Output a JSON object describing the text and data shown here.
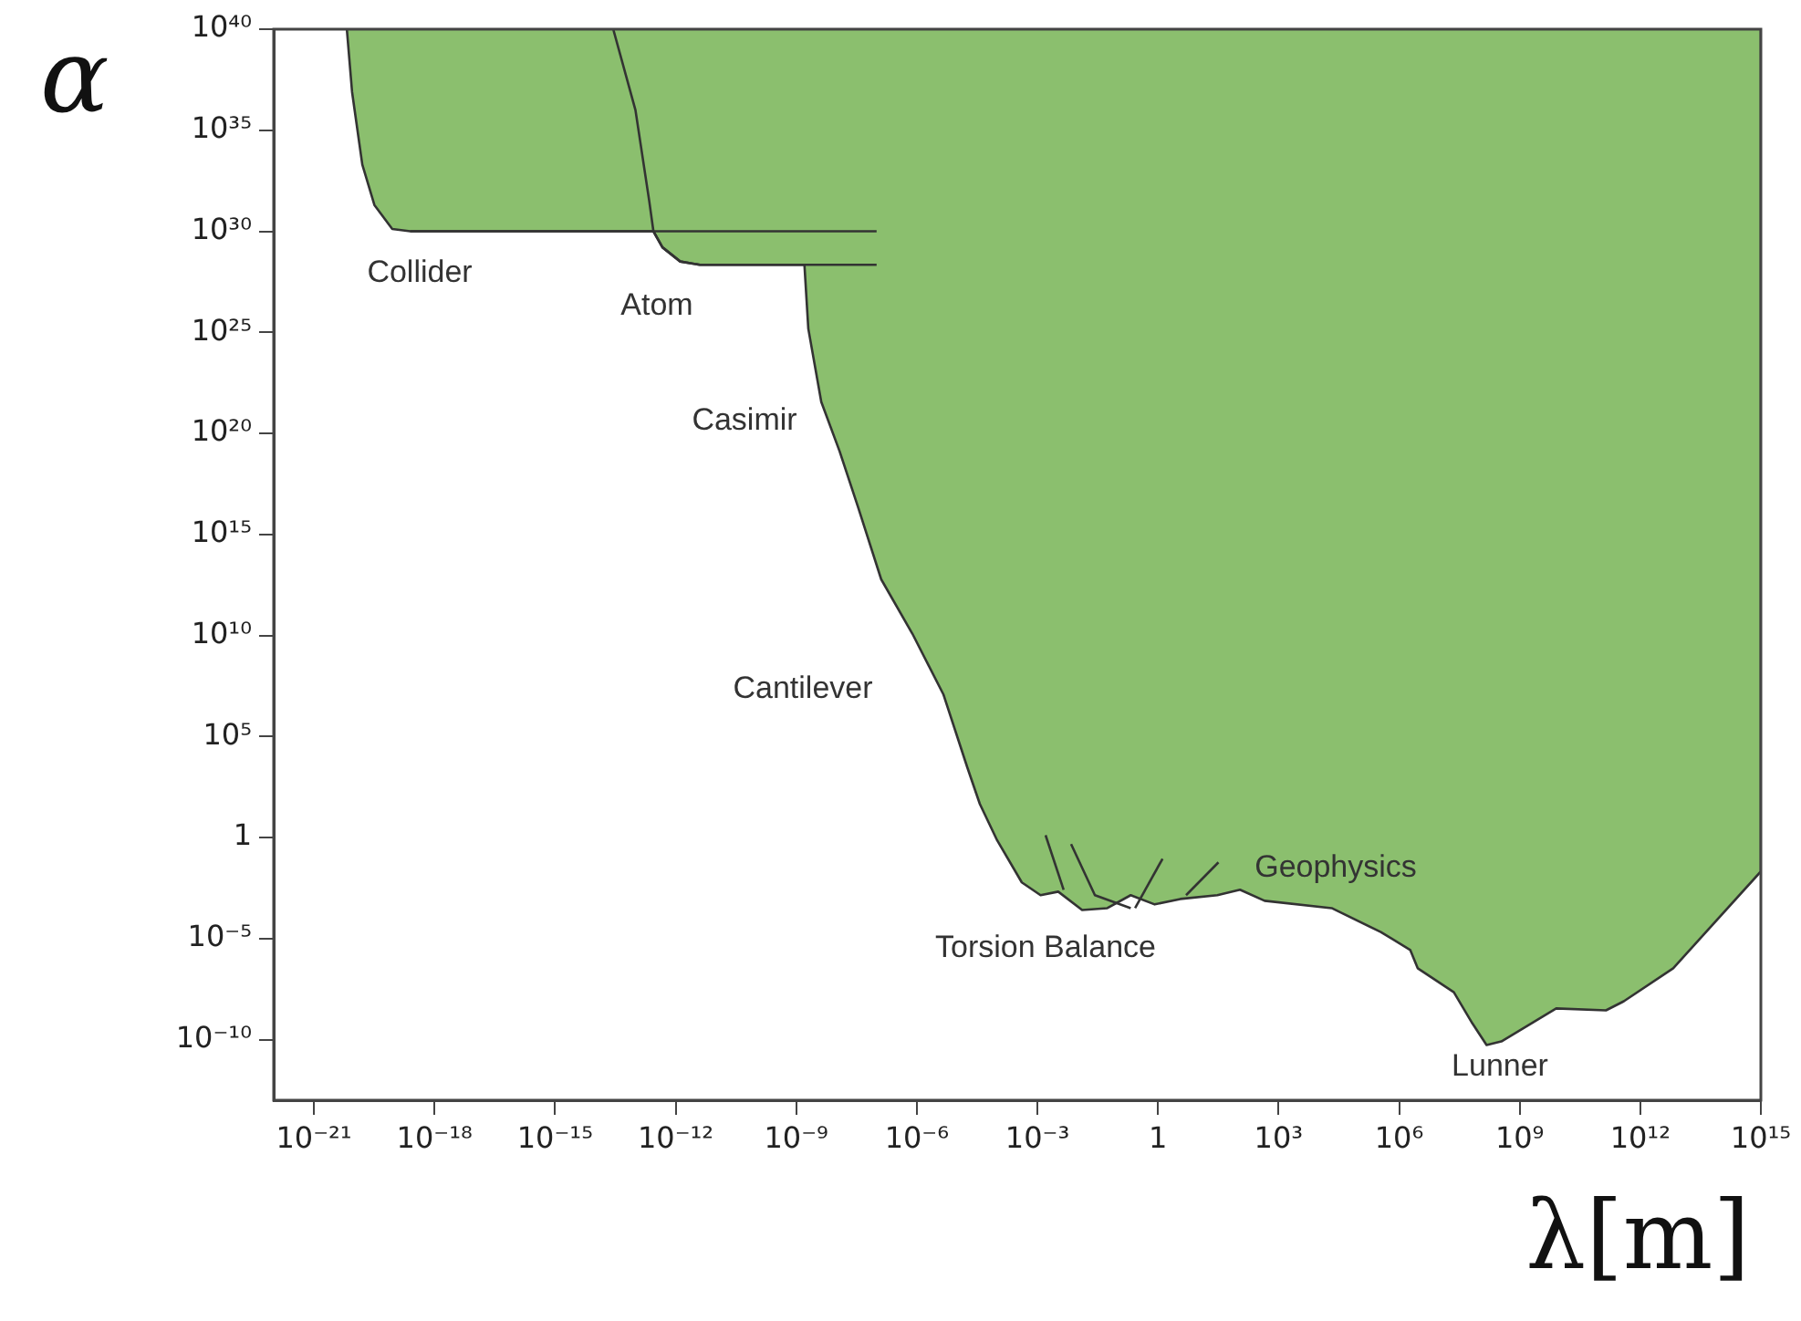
{
  "chart_data": {
    "type": "area",
    "xlabel": "λ[m]",
    "ylabel": "α",
    "log": "xy",
    "grid": false,
    "legend": false,
    "marker": "none",
    "xlim": [
      1e-22,
      1000000000000000.0
    ],
    "ylim": [
      1e-13,
      1e+40
    ],
    "xticks": [
      {
        "value": 1e-21,
        "label": "10⁻²¹"
      },
      {
        "value": 1e-18,
        "label": "10⁻¹⁸"
      },
      {
        "value": 1e-15,
        "label": "10⁻¹⁵"
      },
      {
        "value": 1e-12,
        "label": "10⁻¹²"
      },
      {
        "value": 1e-09,
        "label": "10⁻⁹"
      },
      {
        "value": 1e-06,
        "label": "10⁻⁶"
      },
      {
        "value": 0.001,
        "label": "10⁻³"
      },
      1,
      {
        "value": 1000.0,
        "label": "10³"
      },
      {
        "value": 1000000.0,
        "label": "10⁶"
      },
      {
        "value": 1000000000.0,
        "label": "10⁹"
      },
      {
        "value": 1000000000000.0,
        "label": "10¹²"
      },
      {
        "value": 1000000000000000.0,
        "label": "10¹⁵"
      }
    ],
    "yticks": [
      {
        "value": 1e-10,
        "label": "10⁻¹⁰"
      },
      {
        "value": 1e-05,
        "label": "10⁻⁵"
      },
      1,
      {
        "value": 100000.0,
        "label": "10⁵"
      },
      {
        "value": 10000000000.0,
        "label": "10¹⁰"
      },
      {
        "value": 1000000000000000.0,
        "label": "10¹⁵"
      },
      {
        "value": 1e+20,
        "label": "10²⁰"
      },
      {
        "value": 1e+25,
        "label": "10²⁵"
      },
      {
        "value": 1e+30,
        "label": "10³⁰"
      },
      {
        "value": 1e+35,
        "label": "10³⁵"
      },
      {
        "value": 1e+40,
        "label": "10⁴⁰"
      }
    ],
    "series": [
      {
        "color": "#8bbf6e",
        "x": [
          6.6e-21,
          8.9e-21,
          1.6e-20,
          3.2e-20,
          8.9e-20,
          2.5e-19,
          2.8e-13,
          4.7e-13,
          1.3e-12,
          4e-12,
          1.6e-09,
          2e-09,
          4.2e-09,
          1.2e-08,
          3.4e-08,
          1.3e-07,
          7.8e-07,
          4.6e-06,
          1.8e-05,
          3.7e-05,
          0.0001,
          0.00041,
          0.0012,
          0.0033,
          0.013,
          0.055,
          0.21,
          0.83,
          3.6,
          30,
          110,
          450,
          21000.0,
          350000.0,
          1900000.0,
          2900000.0,
          23000000.0,
          66000000.0,
          150000000.0,
          350000000.0,
          8100000000.0,
          140000000000.0,
          390000000000.0,
          6600000000000.0,
          1000000000000000.0,
          1000000000000000.0
        ],
        "values": [
          1e+40,
          7.9e+36,
          2e+33,
          2e+31,
          1.3e+30,
          1e+30,
          1e+30,
          1.6e+29,
          3.2e+28,
          2.2e+28,
          2.2e+28,
          1.5e+25,
          3.6e+21,
          1.3e+19,
          2.5e+16,
          6000000000000.0,
          12000000000.0,
          12000000.0,
          3000,
          46,
          0.72,
          0.006,
          0.0014,
          0.0021,
          0.00026,
          0.00032,
          0.0014,
          0.00049,
          0.00091,
          0.0014,
          0.0026,
          0.00074,
          0.00032,
          2.1e-05,
          2.7e-06,
          3.4e-07,
          2.2e-08,
          6.5e-10,
          5.4e-11,
          8.1e-11,
          3.5e-09,
          2.8e-09,
          7.9e-09,
          3.4e-07,
          0.021,
          1e+40
        ]
      },
      {
        "type": "line",
        "color": "#333333",
        "x": [
          2.5e-19,
          1e-07
        ],
        "values": [
          1e+30,
          1e+30
        ]
      },
      {
        "type": "line",
        "color": "#333333",
        "x": [
          2.8e-14,
          1e-13,
          2.2e-13,
          2.8e-13,
          4.7e-13,
          1.3e-12,
          4e-12,
          1e-07
        ],
        "values": [
          1e+40,
          1e+36,
          3.2e+31,
          1e+30,
          1.6e+29,
          3.2e+28,
          2.2e+28,
          2.2e+28
        ]
      },
      {
        "type": "line",
        "color": "#333333",
        "x": [
          0.0016,
          0.0045
        ],
        "values": [
          1.3,
          0.0026
        ]
      },
      {
        "type": "line",
        "color": "#333333",
        "x": [
          0.0069,
          0.027,
          0.21
        ],
        "values": [
          0.47,
          0.0014,
          0.00032
        ]
      },
      {
        "type": "line",
        "color": "#333333",
        "x": [
          1.3,
          0.27
        ],
        "values": [
          0.089,
          0.00032
        ]
      },
      {
        "type": "line",
        "color": "#333333",
        "x": [
          32,
          5.0
        ],
        "values": [
          0.059,
          0.0014
        ]
      }
    ],
    "annotations": [
      "Collider",
      "Atom",
      "Casimir",
      "Cantilever",
      "Torsion Balance",
      "Geophysics",
      "Lunner"
    ]
  }
}
